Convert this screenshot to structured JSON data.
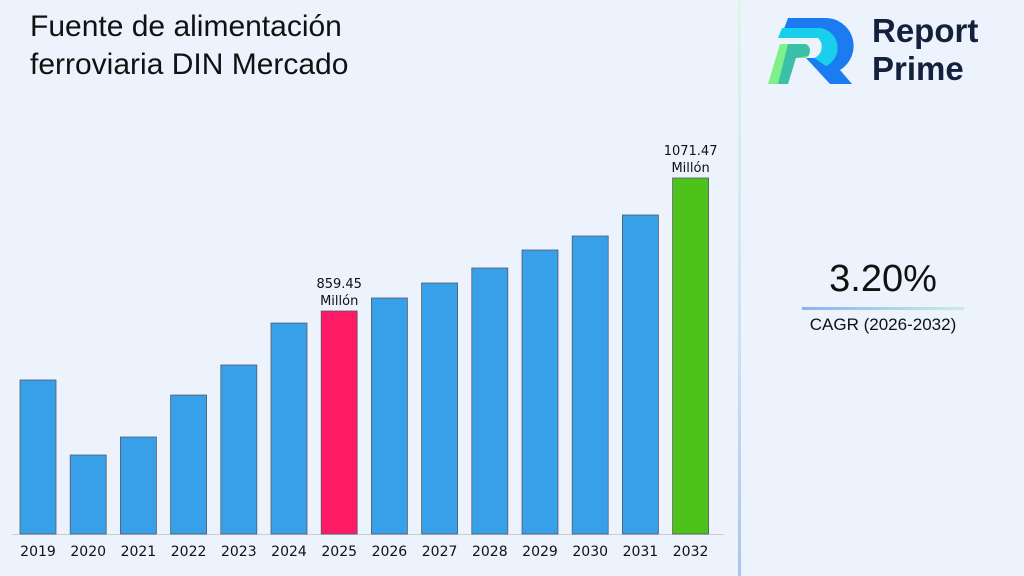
{
  "brand": {
    "name_line1": "Report",
    "name_line2": "Prime"
  },
  "cagr": {
    "value": "3.20%",
    "label": "CAGR (2026-2032)"
  },
  "chart_data": {
    "type": "bar",
    "title": "Fuente de alimentación ferroviaria DIN Mercado",
    "categories": [
      "2019",
      "2020",
      "2021",
      "2022",
      "2023",
      "2024",
      "2025",
      "2026",
      "2027",
      "2028",
      "2029",
      "2030",
      "2031",
      "2032"
    ],
    "values": [
      749.5,
      629.9,
      658.6,
      725.5,
      773.4,
      840.3,
      859.45,
      880.2,
      904.1,
      928.0,
      956.7,
      979.0,
      1012.5,
      1071.47
    ],
    "colors": [
      "#38a0e8",
      "#38a0e8",
      "#38a0e8",
      "#38a0e8",
      "#38a0e8",
      "#38a0e8",
      "#ff1a66",
      "#38a0e8",
      "#38a0e8",
      "#38a0e8",
      "#38a0e8",
      "#38a0e8",
      "#38a0e8",
      "#4cc21a"
    ],
    "data_labels": [
      {
        "category": "2025",
        "value": "859.45",
        "unit": "Millón"
      },
      {
        "category": "2032",
        "value": "1071.47",
        "unit": "Millón"
      }
    ],
    "xlabel": "",
    "ylabel": "",
    "ylim": [
      504,
      1071.47
    ],
    "grid": false,
    "legend": "none"
  }
}
